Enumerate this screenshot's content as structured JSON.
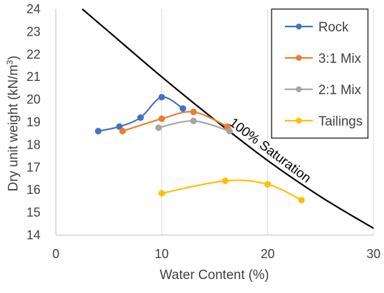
{
  "chart_data": {
    "type": "scatter",
    "xlabel": "Water Content (%)",
    "ylabel": "Dry unit weight (kN/m³)",
    "xlim": [
      0,
      30
    ],
    "ylim": [
      14,
      24
    ],
    "x_ticks": [
      "0",
      "10",
      "20",
      "30"
    ],
    "y_ticks": [
      "14",
      "15",
      "16",
      "17",
      "18",
      "19",
      "20",
      "21",
      "22",
      "23",
      "24"
    ],
    "grid": "vertical major gridlines",
    "legend_position": "top-right",
    "series": [
      {
        "name": "Rock",
        "color": "#4472C4",
        "marker": "circle",
        "smooth": true,
        "points": [
          [
            4.0,
            18.6
          ],
          [
            6.0,
            18.8
          ],
          [
            8.0,
            19.2
          ],
          [
            10.0,
            20.1
          ],
          [
            12.0,
            19.6
          ]
        ]
      },
      {
        "name": "3:1 Mix",
        "color": "#ED7D31",
        "marker": "circle",
        "smooth": true,
        "points": [
          [
            6.3,
            18.6
          ],
          [
            10.0,
            19.15
          ],
          [
            13.0,
            19.45
          ],
          [
            16.2,
            18.8
          ]
        ]
      },
      {
        "name": "2:1 Mix",
        "color": "#A5A5A5",
        "marker": "circle",
        "smooth": true,
        "points": [
          [
            9.7,
            18.75
          ],
          [
            13.0,
            19.05
          ],
          [
            16.4,
            18.6
          ]
        ]
      },
      {
        "name": "Tailings",
        "color": "#FFC000",
        "marker": "circle",
        "smooth": true,
        "points": [
          [
            10.0,
            15.85
          ],
          [
            16.0,
            16.4
          ],
          [
            20.0,
            16.25
          ],
          [
            23.2,
            15.55
          ]
        ]
      }
    ],
    "reference_curve": {
      "label": "100% Saturation",
      "color": "#000000",
      "points": [
        [
          2.5,
          24.0
        ],
        [
          5,
          23.0
        ],
        [
          10,
          21.0
        ],
        [
          15,
          19.1
        ],
        [
          20,
          17.3
        ],
        [
          25,
          15.7
        ],
        [
          30,
          14.3
        ]
      ]
    }
  }
}
